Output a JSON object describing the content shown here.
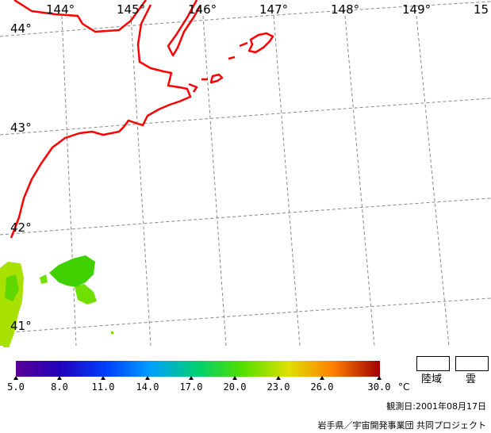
{
  "map": {
    "lon_labels": [
      "144°",
      "145°",
      "146°",
      "147°",
      "148°",
      "149°",
      "15"
    ],
    "lat_labels": [
      "44°",
      "43°",
      "42°",
      "41°"
    ],
    "coastline_color": "#ff0000",
    "grid_color": "#888888",
    "land_mask": true
  },
  "legend": {
    "ticks": [
      "5.0",
      "8.0",
      "11.0",
      "14.0",
      "17.0",
      "20.0",
      "23.0",
      "26.0",
      "30.0"
    ],
    "unit": "°C",
    "land_label": "陸域",
    "cloud_label": "雲"
  },
  "footer": {
    "observation_date": "観測日:2001年08月17日",
    "credit": "岩手県／宇宙開発事業団 共同プロジェクト"
  },
  "colors": {
    "scale_low": "#5a0096",
    "scale_mid": "#00d070",
    "scale_high": "#a00000",
    "sst_green": "#40d000",
    "sst_yellowgreen": "#a0e000"
  }
}
